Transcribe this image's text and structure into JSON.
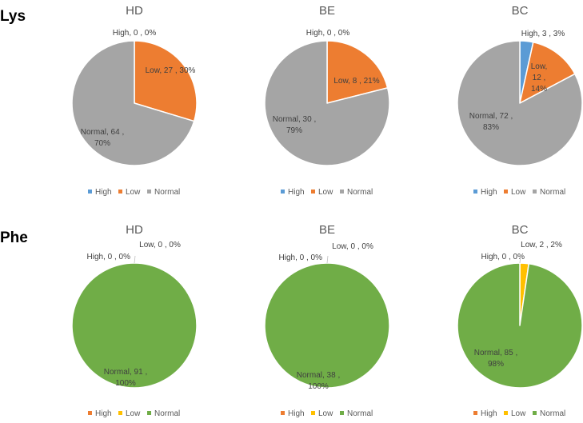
{
  "chart_data": [
    {
      "type": "pie",
      "row": "Lys",
      "title": "HD",
      "categories": [
        "High",
        "Low",
        "Normal"
      ],
      "values": [
        0,
        27,
        64
      ],
      "percents": [
        "0%",
        "30%",
        "70%"
      ],
      "labels": [
        [
          "High, 0 , 0%"
        ],
        [
          "Low, 27 , 30%"
        ],
        [
          "Normal, 64 ,",
          "70%"
        ]
      ],
      "colors": [
        "#5B9BD5",
        "#ED7D31",
        "#A5A5A5"
      ],
      "legend": "bottom"
    },
    {
      "type": "pie",
      "row": "Lys",
      "title": "BE",
      "categories": [
        "High",
        "Low",
        "Normal"
      ],
      "values": [
        0,
        8,
        30
      ],
      "percents": [
        "0%",
        "21%",
        "79%"
      ],
      "labels": [
        [
          "High, 0 , 0%"
        ],
        [
          "Low, 8 , 21%"
        ],
        [
          "Normal, 30 ,",
          "79%"
        ]
      ],
      "colors": [
        "#5B9BD5",
        "#ED7D31",
        "#A5A5A5"
      ],
      "legend": "bottom"
    },
    {
      "type": "pie",
      "row": "Lys",
      "title": "BC",
      "categories": [
        "High",
        "Low",
        "Normal"
      ],
      "values": [
        3,
        12,
        72
      ],
      "percents": [
        "3%",
        "14%",
        "83%"
      ],
      "labels": [
        [
          "High, 3 , 3%"
        ],
        [
          "Low,",
          "12 ,",
          "14%"
        ],
        [
          "Normal, 72 ,",
          "83%"
        ]
      ],
      "colors": [
        "#5B9BD5",
        "#ED7D31",
        "#A5A5A5"
      ],
      "legend": "bottom"
    },
    {
      "type": "pie",
      "row": "Phe",
      "title": "HD",
      "categories": [
        "High",
        "Low",
        "Normal"
      ],
      "values": [
        0,
        0,
        91
      ],
      "percents": [
        "0%",
        "0%",
        "100%"
      ],
      "labels": [
        [
          "High, 0 , 0%"
        ],
        [
          "Low, 0 , 0%"
        ],
        [
          "Normal, 91 ,",
          "100%"
        ]
      ],
      "colors": [
        "#ED7D31",
        "#FFC000",
        "#70AD47"
      ],
      "legend": "bottom"
    },
    {
      "type": "pie",
      "row": "Phe",
      "title": "BE",
      "categories": [
        "High",
        "Low",
        "Normal"
      ],
      "values": [
        0,
        0,
        38
      ],
      "percents": [
        "0%",
        "0%",
        "100%"
      ],
      "labels": [
        [
          "High, 0 , 0%"
        ],
        [
          "Low, 0 , 0%"
        ],
        [
          "Normal, 38 ,",
          "100%"
        ]
      ],
      "colors": [
        "#ED7D31",
        "#FFC000",
        "#70AD47"
      ],
      "legend": "bottom"
    },
    {
      "type": "pie",
      "row": "Phe",
      "title": "BC",
      "categories": [
        "High",
        "Low",
        "Normal"
      ],
      "values": [
        0,
        2,
        85
      ],
      "percents": [
        "0%",
        "2%",
        "98%"
      ],
      "labels": [
        [
          "High, 0 , 0%"
        ],
        [
          "Low, 2 , 2%"
        ],
        [
          "Normal, 85 ,",
          "98%"
        ]
      ],
      "colors": [
        "#ED7D31",
        "#FFC000",
        "#70AD47"
      ],
      "legend": "bottom"
    }
  ],
  "rows": [
    "Lys",
    "Phe"
  ]
}
